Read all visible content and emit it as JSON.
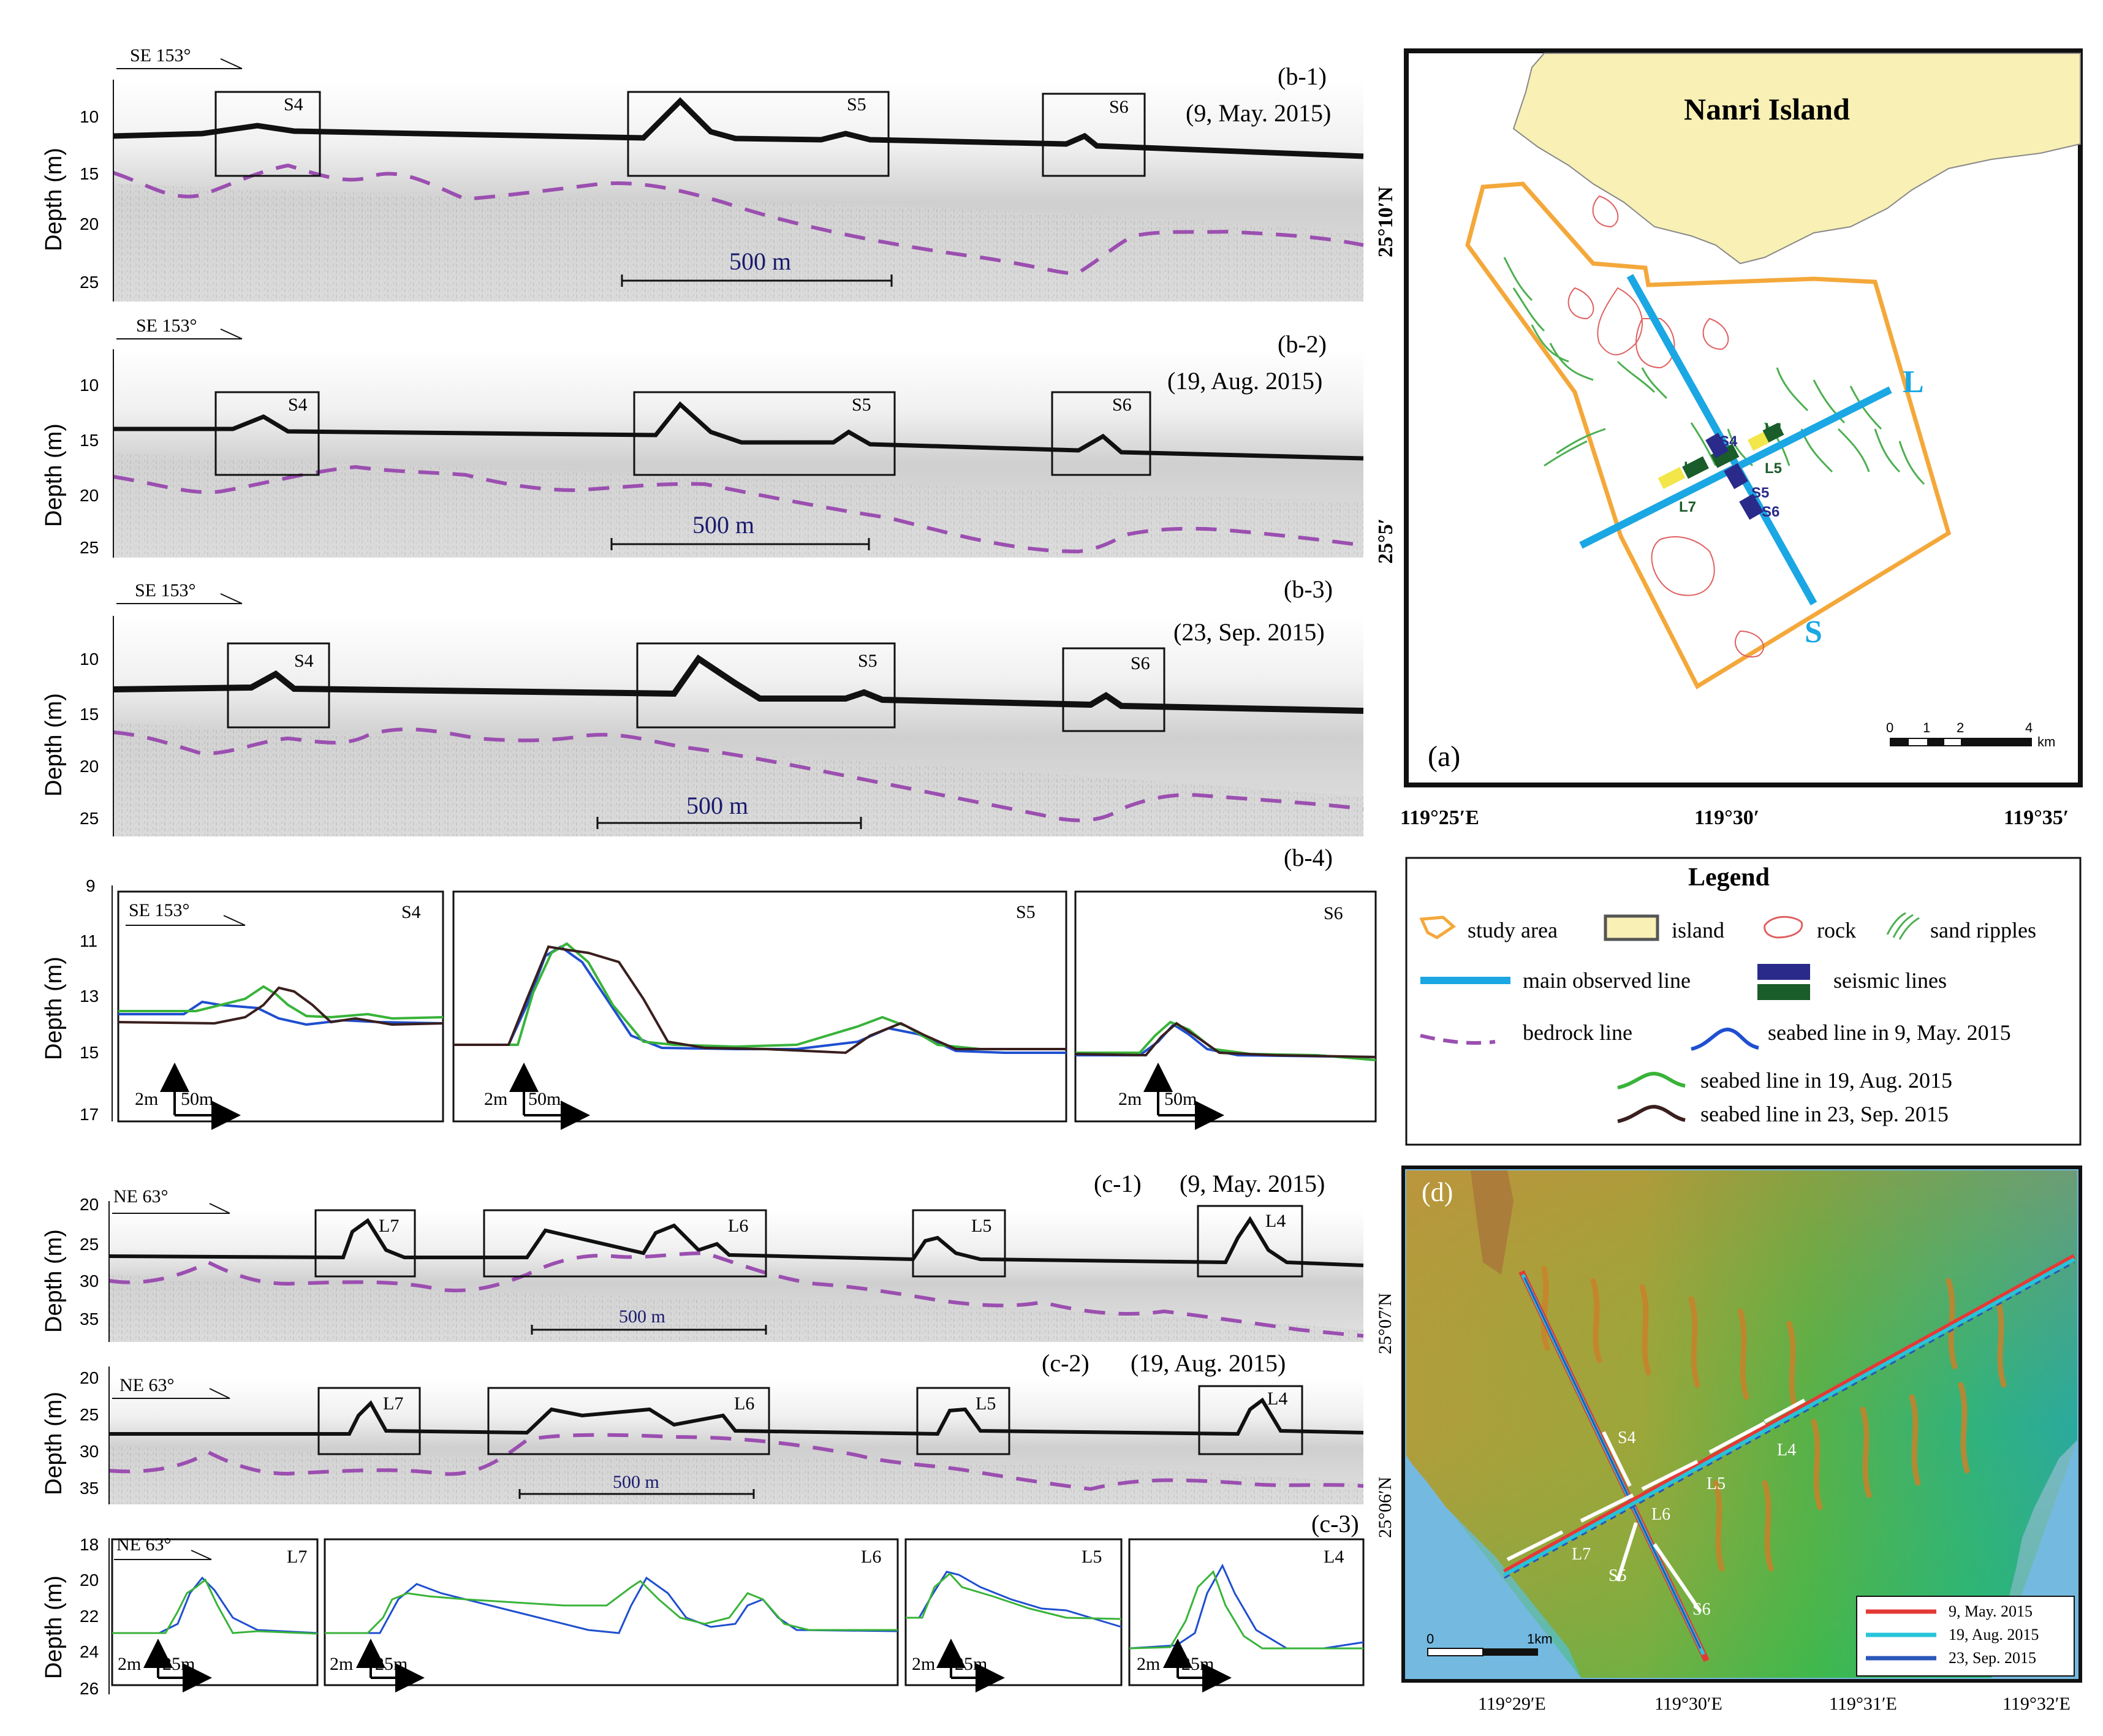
{
  "common": {
    "direction_se": "SE  153°",
    "direction_ne": "NE  63°",
    "depth_axis": "Depth (m)",
    "scale_500": "500 m",
    "scale_2m": "2m",
    "scale_50m": "50m",
    "scale_25m": "25m"
  },
  "profiles_b": [
    {
      "tag": "(b-1)",
      "date": "(9, May. 2015)",
      "ticks": [
        "10",
        "15",
        "20",
        "25"
      ],
      "boxes": [
        "S4",
        "S5",
        "S6"
      ]
    },
    {
      "tag": "(b-2)",
      "date": "(19, Aug. 2015)",
      "ticks": [
        "10",
        "15",
        "20",
        "25"
      ],
      "boxes": [
        "S4",
        "S5",
        "S6"
      ]
    },
    {
      "tag": "(b-3)",
      "date": "(23, Sep. 2015)",
      "ticks": [
        "10",
        "15",
        "20",
        "25"
      ],
      "boxes": [
        "S4",
        "S5",
        "S6"
      ]
    }
  ],
  "panel_b4": {
    "tag": "(b-4)",
    "ticks": [
      "9",
      "11",
      "13",
      "15",
      "17"
    ],
    "subpanels": [
      "S4",
      "S5",
      "S6"
    ]
  },
  "profiles_c": [
    {
      "tag": "(c-1)",
      "date": "(9, May. 2015)",
      "ticks": [
        "20",
        "25",
        "30",
        "35"
      ],
      "boxes": [
        "L7",
        "L6",
        "L5",
        "L4"
      ]
    },
    {
      "tag": "(c-2)",
      "date": "(19, Aug. 2015)",
      "ticks": [
        "20",
        "25",
        "30",
        "35"
      ],
      "boxes": [
        "L7",
        "L6",
        "L5",
        "L4"
      ]
    }
  ],
  "panel_c3": {
    "tag": "(c-3)",
    "ticks": [
      "18",
      "20",
      "22",
      "24",
      "26"
    ],
    "subpanels": [
      "L7",
      "L6",
      "L5",
      "L4"
    ]
  },
  "map_a": {
    "tag": "(a)",
    "island": "Nanri Island",
    "lat_labels": [
      "25°10′N",
      "25°5′"
    ],
    "lon_labels": [
      "119°25′E",
      "119°30′",
      "119°35′"
    ],
    "line_labels": [
      "L",
      "S"
    ],
    "seismic_labels": [
      "S4",
      "L4",
      "L6",
      "L5",
      "S5",
      "L7",
      "S6"
    ],
    "scalebar": [
      "0",
      "1",
      "2",
      "4",
      "km"
    ]
  },
  "legend": {
    "title": "Legend",
    "study_area": "study area",
    "island": "island",
    "rock": "rock",
    "sand_ripples": "sand ripples",
    "main_line": "main observed line",
    "seismic": "seismic lines",
    "bedrock": "bedrock line",
    "seabed_may": "seabed line in 9, May. 2015",
    "seabed_aug": "seabed line in 19, Aug. 2015",
    "seabed_sep": "seabed line in 23, Sep. 2015"
  },
  "map_d": {
    "tag": "(d)",
    "lat_labels": [
      "25°07′N",
      "25°06′N"
    ],
    "lon_labels": [
      "119°29′E",
      "119°30′E",
      "119°31′E",
      "119°32′E"
    ],
    "line_labels": [
      "S4",
      "L4",
      "L5",
      "L6",
      "L7",
      "S5",
      "S6"
    ],
    "scalebar": [
      "0",
      "1km"
    ],
    "key": [
      "9, May. 2015",
      "19, Aug. 2015",
      "23, Sep. 2015"
    ]
  },
  "colors": {
    "may": "#1f4fd0",
    "aug": "#39b33a",
    "sep": "#3a1f1f",
    "bedrock": "#9b4fb0",
    "main_line": "#1aa7e3",
    "study_area": "#f4a83a",
    "island_fill": "#f8f0b4",
    "rock": "#e06060",
    "ripple": "#4caf50",
    "seismic_blue": "#2a2a8a",
    "seismic_green": "#1a5c2a"
  }
}
